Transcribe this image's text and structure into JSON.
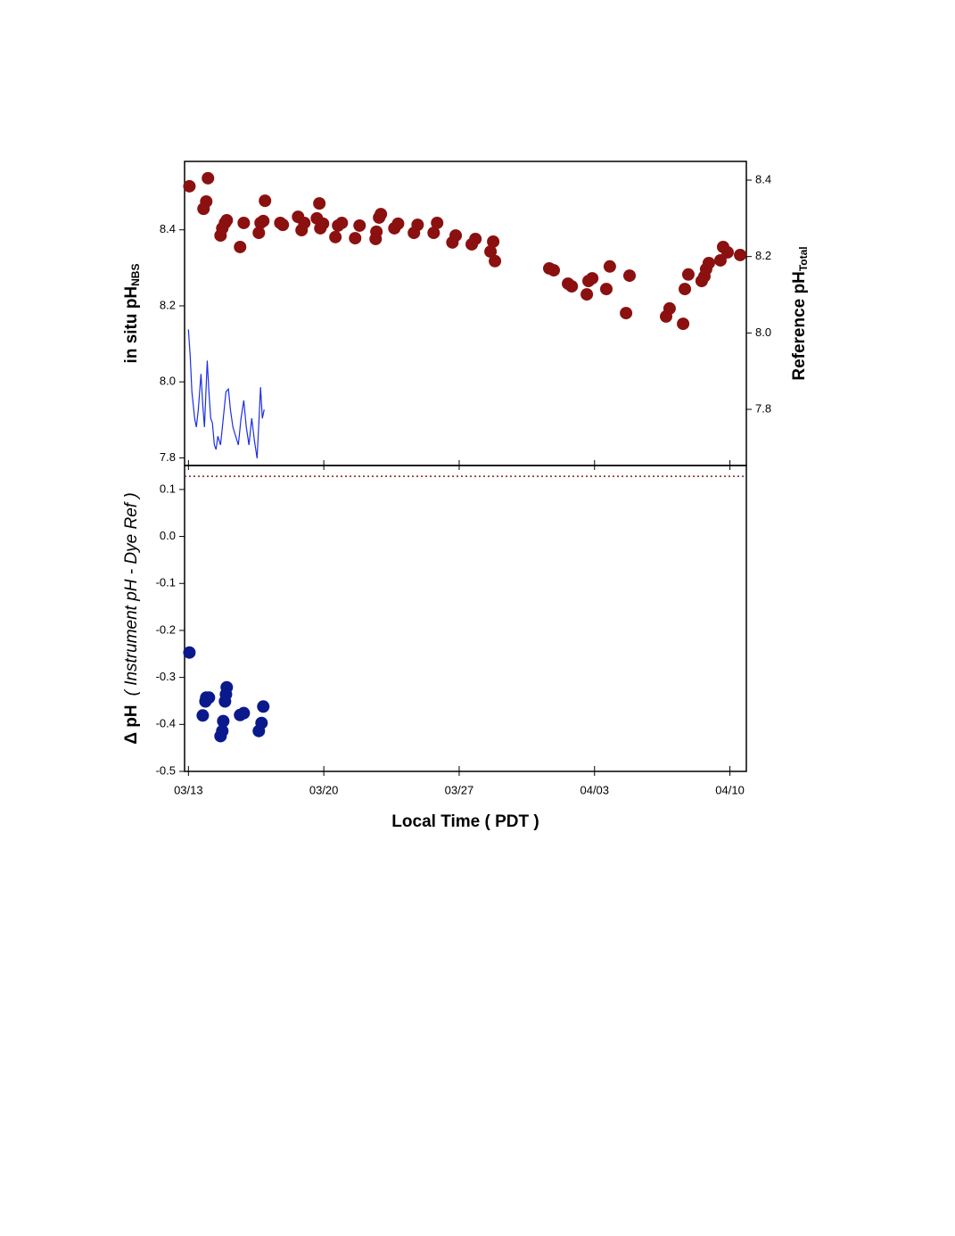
{
  "chart_data": [
    {
      "type": "scatter",
      "ylabel": "in situ pH",
      "ylabel_sub": "NBS",
      "y2label": "Reference pH",
      "y2label_sub": "Total",
      "xlim": [
        12.8,
        41.85
      ],
      "xticks": [
        13,
        20,
        27,
        34,
        41
      ],
      "ylim": [
        7.78,
        8.58
      ],
      "yticks": [
        7.8,
        {
          "value": 8,
          "label": "8.0"
        },
        8.2,
        8.4
      ],
      "y2lim": [
        7.653,
        8.449
      ],
      "y2ticks": [
        7.8,
        {
          "value": 8,
          "label": "8.0"
        },
        8.2,
        8.4
      ],
      "series": [
        {
          "type": "line",
          "color": "#1c2ee6",
          "x": [
            13.0,
            13.09,
            13.18,
            13.32,
            13.41,
            13.51,
            13.65,
            13.74,
            13.83,
            13.97,
            14.06,
            14.15,
            14.24,
            14.34,
            14.43,
            14.52,
            14.66,
            14.8,
            14.94,
            15.07,
            15.17,
            15.3,
            15.44,
            15.58,
            15.72,
            15.86,
            15.99,
            16.13,
            16.27,
            16.41,
            16.55,
            16.64,
            16.73,
            16.82,
            16.92
          ],
          "values": [
            8.138,
            8.068,
            7.974,
            7.904,
            7.881,
            7.927,
            8.021,
            7.939,
            7.881,
            8.056,
            7.974,
            7.904,
            7.892,
            7.834,
            7.822,
            7.857,
            7.834,
            7.904,
            7.974,
            7.981,
            7.927,
            7.881,
            7.857,
            7.834,
            7.904,
            7.951,
            7.881,
            7.834,
            7.904,
            7.846,
            7.799,
            7.892,
            7.986,
            7.904,
            7.927
          ]
        },
        {
          "type": "scatter",
          "axis": "y2",
          "color": "#8b1010",
          "x": [
            13.05,
            13.78,
            13.92,
            14.01,
            14.66,
            14.75,
            14.89,
            14.98,
            15.67,
            15.86,
            16.64,
            16.73,
            16.87,
            16.96,
            17.75,
            17.88,
            18.67,
            18.85,
            18.99,
            19.64,
            19.77,
            19.82,
            19.96,
            20.6,
            20.74,
            20.93,
            21.62,
            21.85,
            22.68,
            22.72,
            22.86,
            22.95,
            23.65,
            23.84,
            24.66,
            24.85,
            25.68,
            25.86,
            26.65,
            26.82,
            27.65,
            27.84,
            28.62,
            28.76,
            28.85,
            31.66,
            31.89,
            32.63,
            32.82,
            33.6,
            33.69,
            33.88,
            34.61,
            34.79,
            35.63,
            35.81,
            37.7,
            37.88,
            38.58,
            38.67,
            38.85,
            39.54,
            39.68,
            39.77,
            39.91,
            40.51,
            40.65,
            40.88,
            41.53
          ],
          "values": [
            8.384,
            8.325,
            8.344,
            8.405,
            8.255,
            8.274,
            8.288,
            8.295,
            8.225,
            8.288,
            8.262,
            8.288,
            8.293,
            8.346,
            8.288,
            8.283,
            8.304,
            8.269,
            8.288,
            8.3,
            8.339,
            8.274,
            8.286,
            8.251,
            8.281,
            8.288,
            8.248,
            8.281,
            8.246,
            8.265,
            8.302,
            8.311,
            8.274,
            8.286,
            8.262,
            8.283,
            8.262,
            8.288,
            8.237,
            8.255,
            8.232,
            8.246,
            8.213,
            8.239,
            8.188,
            8.169,
            8.164,
            8.129,
            8.122,
            8.101,
            8.136,
            8.143,
            8.115,
            8.174,
            8.052,
            8.15,
            8.043,
            8.064,
            8.024,
            8.115,
            8.153,
            8.136,
            8.148,
            8.167,
            8.183,
            8.19,
            8.225,
            8.211,
            8.204
          ]
        }
      ]
    },
    {
      "type": "scatter",
      "ylabel": "Δ pH",
      "ylabel_note": "( Instrument pH - Dye Ref )",
      "xlabel": "Local Time ( PDT )",
      "xlim": [
        12.8,
        41.85
      ],
      "xticks": [
        {
          "value": 13,
          "label": "03/13"
        },
        {
          "value": 20,
          "label": "03/20"
        },
        {
          "value": 27,
          "label": "03/27"
        },
        {
          "value": 34,
          "label": "04/03"
        },
        {
          "value": 41,
          "label": "04/10"
        }
      ],
      "ylim": [
        -0.5,
        0.151
      ],
      "yticks": [
        0.1,
        {
          "value": 0,
          "label": "0.0"
        },
        -0.1,
        -0.2,
        -0.3,
        -0.4,
        -0.5
      ],
      "hline": {
        "value": 0.128,
        "color": "#8b1a1a",
        "style": "dotted"
      },
      "series": [
        {
          "type": "scatter",
          "color": "#0a1a8c",
          "x": [
            13.05,
            13.74,
            13.88,
            13.92,
            14.06,
            14.66,
            14.75,
            14.8,
            14.89,
            14.94,
            14.98,
            15.67,
            15.86,
            16.64,
            16.78,
            16.87
          ],
          "values": [
            -0.247,
            -0.381,
            -0.351,
            -0.343,
            -0.343,
            -0.425,
            -0.414,
            -0.393,
            -0.351,
            -0.336,
            -0.321,
            -0.38,
            -0.376,
            -0.414,
            -0.397,
            -0.362
          ]
        }
      ]
    }
  ]
}
